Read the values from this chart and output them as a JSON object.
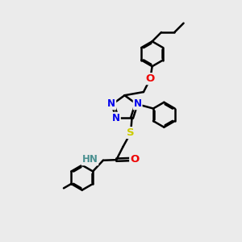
{
  "bg_color": "#ebebeb",
  "bond_color": "#000000",
  "bond_width": 1.8,
  "atom_colors": {
    "N": "#0000ee",
    "O": "#ee0000",
    "S": "#cccc00",
    "H": "#4a9090",
    "C": "#000000"
  },
  "font_size": 7.5,
  "fig_size": [
    3.0,
    3.0
  ],
  "dpi": 100
}
